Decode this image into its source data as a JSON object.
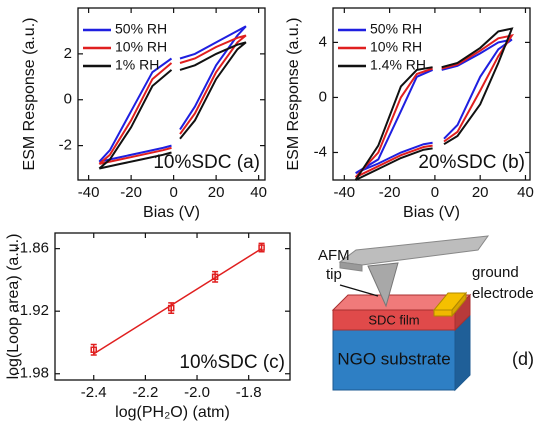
{
  "chart_data": [
    {
      "type": "line",
      "xlabel": "Bias (V)",
      "ylabel": "ESM Response (a.u.)",
      "annotation": "10%SDC (a)",
      "xlim": [
        -45,
        43
      ],
      "ylim": [
        -3.5,
        4
      ],
      "xticks": [
        -40,
        -20,
        0,
        20,
        40
      ],
      "yticks": [
        -2,
        0,
        2
      ],
      "legend": "upper left",
      "x": [
        -35,
        -25,
        -15,
        -5,
        -1,
        null,
        3,
        10,
        20,
        30,
        34,
        30,
        20,
        10,
        3,
        null,
        -1,
        -10,
        -20,
        -30,
        -35
      ],
      "series": [
        {
          "name": "50% RH",
          "color": "#1f1fe0",
          "values": [
            -2.7,
            -2.5,
            -2.3,
            -2.1,
            -2.0,
            null,
            -1.3,
            -0.3,
            1.5,
            2.8,
            3.2,
            3.0,
            2.5,
            2.0,
            1.8,
            null,
            1.8,
            1.2,
            -0.5,
            -2.2,
            -2.7
          ]
        },
        {
          "name": "10% RH",
          "color": "#e01f1f",
          "values": [
            -2.8,
            -2.6,
            -2.4,
            -2.2,
            -2.1,
            null,
            -1.5,
            -0.6,
            1.2,
            2.5,
            2.8,
            2.7,
            2.3,
            1.8,
            1.6,
            null,
            1.6,
            0.9,
            -0.9,
            -2.4,
            -2.8
          ]
        },
        {
          "name": "1% RH",
          "color": "#111111",
          "values": [
            -3.0,
            -2.8,
            -2.6,
            -2.4,
            -2.3,
            null,
            -1.7,
            -0.9,
            0.9,
            2.2,
            2.5,
            2.4,
            2.0,
            1.5,
            1.3,
            null,
            1.3,
            0.6,
            -1.2,
            -2.6,
            -3.0
          ]
        }
      ]
    },
    {
      "type": "line",
      "xlabel": "Bias (V)",
      "ylabel": "ESM Response (a.u.)",
      "annotation": "20%SDC (b)",
      "xlim": [
        -45,
        42
      ],
      "ylim": [
        -6,
        6.5
      ],
      "xticks": [
        -40,
        -20,
        0,
        20,
        40
      ],
      "yticks": [
        -4,
        0,
        4
      ],
      "legend": "upper left",
      "x": [
        -35,
        -25,
        -15,
        -5,
        -1,
        null,
        4,
        10,
        20,
        28,
        34,
        28,
        20,
        10,
        3,
        null,
        -1,
        -8,
        -15,
        -25,
        -35
      ],
      "series": [
        {
          "name": "50% RH",
          "color": "#1f1fe0",
          "values": [
            -5.5,
            -4.8,
            -4.0,
            -3.4,
            -3.3,
            null,
            -3.0,
            -2.0,
            1.5,
            3.5,
            4.2,
            4.0,
            3.2,
            2.3,
            2.0,
            null,
            2.0,
            1.5,
            -1.0,
            -4.5,
            -5.5
          ]
        },
        {
          "name": "10% RH",
          "color": "#e01f1f",
          "values": [
            -5.8,
            -5.0,
            -4.2,
            -3.6,
            -3.5,
            null,
            -3.2,
            -2.5,
            0.5,
            3.0,
            4.5,
            4.3,
            3.4,
            2.4,
            2.1,
            null,
            2.1,
            1.7,
            0.0,
            -4.0,
            -5.8
          ]
        },
        {
          "name": "1.4% RH",
          "color": "#111111",
          "values": [
            -6.0,
            -5.2,
            -4.4,
            -3.8,
            -3.7,
            null,
            -3.4,
            -2.8,
            -0.5,
            2.5,
            5.0,
            4.8,
            3.6,
            2.5,
            2.2,
            null,
            2.2,
            2.0,
            0.8,
            -3.5,
            -6.0
          ]
        }
      ]
    },
    {
      "type": "scatter",
      "xlabel": "log(PH₂O) (atm)",
      "ylabel": "log(Loop area) (a.u.)",
      "annotation": "10%SDC (c)",
      "xlim": [
        -2.55,
        -1.64
      ],
      "ylim": [
        -1.986,
        -1.845
      ],
      "xticks": [
        -2.4,
        -2.2,
        {
          "value": -2,
          "label": "-2.0"
        },
        -1.8
      ],
      "yticks": [
        -1.86,
        -1.92,
        -1.98
      ],
      "color": "#e01f1f",
      "x": [
        -2.4,
        -2.1,
        -1.93,
        -1.75
      ],
      "values": [
        -1.957,
        -1.917,
        -1.887,
        -1.859
      ],
      "errors": [
        0.005,
        0.005,
        0.005,
        0.004
      ],
      "fit": {
        "x": [
          -2.4,
          -1.75
        ],
        "values": [
          -1.961,
          -1.86
        ]
      }
    }
  ],
  "diagram": {
    "tip_label": [
      "AFM",
      "tip"
    ],
    "electrode_label": [
      "ground",
      "electrode"
    ],
    "film": "SDC film",
    "substrate": "NGO substrate",
    "panel": "(d)"
  }
}
